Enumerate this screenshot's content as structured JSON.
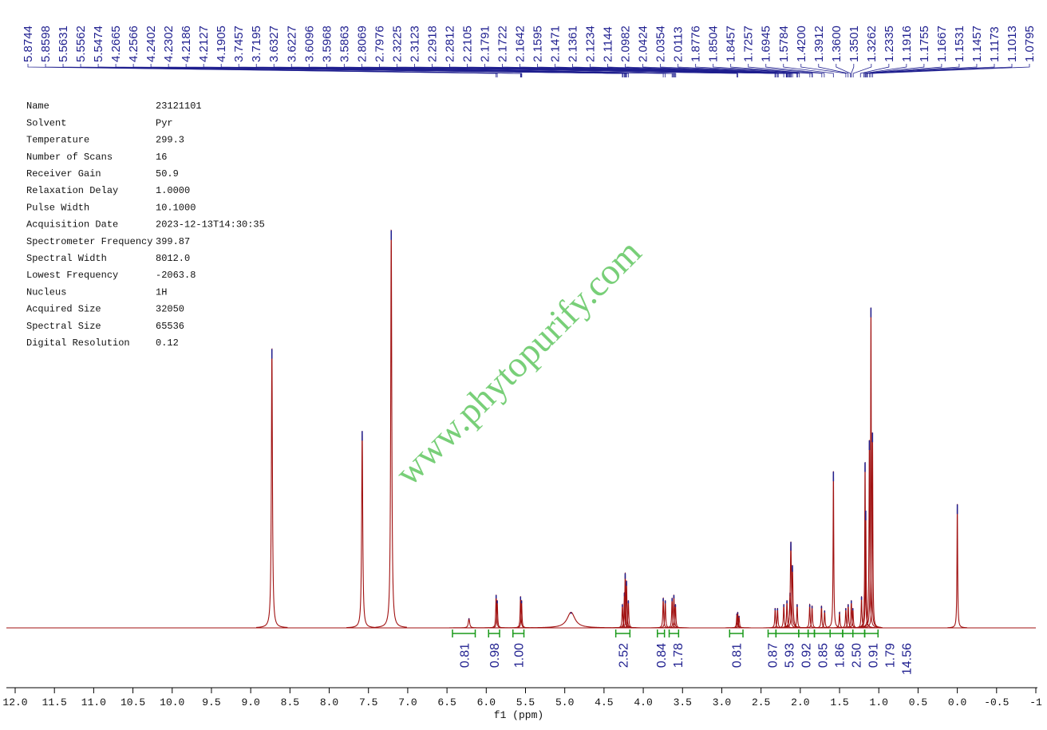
{
  "parameters": [
    [
      "Name",
      "23121101"
    ],
    [
      "Solvent",
      "Pyr"
    ],
    [
      "Temperature",
      "299.3"
    ],
    [
      "Number of Scans",
      "16"
    ],
    [
      "Receiver Gain",
      "50.9"
    ],
    [
      "Relaxation Delay",
      "1.0000"
    ],
    [
      "Pulse Width",
      "10.1000"
    ],
    [
      "Acquisition Date",
      "2023-12-13T14:30:35"
    ],
    [
      "Spectrometer Frequency",
      "399.87"
    ],
    [
      "Spectral Width",
      "8012.0"
    ],
    [
      "Lowest Frequency",
      "-2063.8"
    ],
    [
      "Nucleus",
      "1H"
    ],
    [
      "Acquired Size",
      "32050"
    ],
    [
      "Spectral Size",
      "65536"
    ],
    [
      "Digital Resolution",
      "0.12"
    ]
  ],
  "watermark": "www.phytopurify.com",
  "chart_data": {
    "type": "nmr",
    "xlabel": "f1 (ppm)",
    "xlim": [
      12.0,
      -1
    ],
    "xticks": [
      {
        "value": 12,
        "label": "12.0"
      },
      11.5,
      {
        "value": 11,
        "label": "11.0"
      },
      10.5,
      {
        "value": 10,
        "label": "10.0"
      },
      9.5,
      {
        "value": 9,
        "label": "9.0"
      },
      8.5,
      {
        "value": 8,
        "label": "8.0"
      },
      7.5,
      {
        "value": 7,
        "label": "7.0"
      },
      6.5,
      {
        "value": 6,
        "label": "6.0"
      },
      5.5,
      {
        "value": 5,
        "label": "5.0"
      },
      4.5,
      {
        "value": 4,
        "label": "4.0"
      },
      3.5,
      {
        "value": 3,
        "label": "3.0"
      },
      2.5,
      {
        "value": 2,
        "label": "2.0"
      },
      1.5,
      {
        "value": 1,
        "label": "1.0"
      },
      0.5,
      {
        "value": 0,
        "label": "0.0"
      },
      -0.5,
      -1
    ],
    "ylim": [
      0,
      520
    ],
    "color": "#a01010",
    "peak_color": "#1f1f8f",
    "peak_labels": [
      5.8744,
      5.8598,
      5.5631,
      5.5562,
      5.5474,
      4.2665,
      4.2566,
      4.2402,
      4.2302,
      4.2186,
      4.2127,
      4.1905,
      3.7457,
      3.7195,
      3.6327,
      3.6227,
      3.6096,
      3.5968,
      3.5863,
      2.8069,
      2.7976,
      2.3225,
      2.3123,
      2.2918,
      2.2812,
      2.2105,
      2.1791,
      2.1722,
      2.1642,
      2.1595,
      2.1471,
      2.1361,
      2.1234,
      2.1144,
      2.0982,
      2.0424,
      2.0354,
      2.0113,
      1.8776,
      1.8504,
      1.8457,
      1.7257,
      1.6945,
      1.5784,
      {
        "value": 1.42,
        "label": "1.4200"
      },
      1.3912,
      {
        "value": 1.36,
        "label": "1.3600"
      },
      1.3501,
      1.3262,
      1.2335,
      1.1916,
      1.1755,
      1.1667,
      1.1531,
      1.1457,
      1.1173,
      1.1013,
      1.0795
    ],
    "peaks": {
      "x": [
        8.73,
        7.58,
        7.21,
        6.22,
        5.874,
        5.86,
        5.563,
        5.55,
        4.92,
        4.266,
        4.24,
        4.23,
        4.213,
        4.19,
        3.746,
        3.72,
        3.633,
        3.61,
        3.59,
        2.807,
        2.797,
        2.78,
        2.32,
        2.29,
        2.21,
        2.17,
        2.13,
        2.12,
        2.1,
        2.04,
        1.88,
        1.85,
        1.73,
        1.69,
        1.578,
        1.5,
        1.42,
        1.39,
        1.35,
        1.33,
        1.22,
        1.175,
        1.166,
        1.12,
        1.1,
        1.08,
        0.0
      ],
      "values": [
        357,
        252,
        509,
        12,
        42,
        35,
        40,
        35,
        20,
        30,
        45,
        70,
        60,
        35,
        38,
        35,
        38,
        42,
        30,
        18,
        20,
        15,
        25,
        25,
        30,
        35,
        45,
        110,
        80,
        30,
        30,
        28,
        28,
        22,
        200,
        20,
        25,
        30,
        35,
        25,
        40,
        212,
        150,
        240,
        410,
        250,
        158
      ],
      "widths": [
        0.008,
        0.008,
        0.008,
        0.01,
        0.006,
        0.006,
        0.006,
        0.006,
        0.06,
        0.006,
        0.006,
        0.006,
        0.006,
        0.006,
        0.006,
        0.006,
        0.006,
        0.006,
        0.006,
        0.006,
        0.006,
        0.006,
        0.006,
        0.006,
        0.006,
        0.006,
        0.008,
        0.008,
        0.008,
        0.006,
        0.006,
        0.006,
        0.006,
        0.006,
        0.005,
        0.006,
        0.006,
        0.006,
        0.006,
        0.006,
        0.006,
        0.005,
        0.005,
        0.006,
        0.005,
        0.005,
        0.005
      ]
    },
    "integrals": {
      "color": "#1a9a1a",
      "values": [
        0.81,
        0.98,
        1.0,
        2.52,
        0.84,
        1.78,
        0.81,
        0.87,
        5.93,
        0.92,
        0.85,
        1.86,
        2.5,
        0.91,
        1.79,
        14.56
      ],
      "value_labels": [
        "0.81",
        "0.98",
        "1.00",
        "2.52",
        "0.84",
        "1.78",
        "0.81",
        "0.87",
        "5.93",
        "0.92",
        "0.85",
        "1.86",
        "2.50",
        "0.91",
        "1.79",
        "14.56"
      ],
      "ranges": [
        [
          6.43,
          6.14
        ],
        [
          5.97,
          5.83
        ],
        [
          5.66,
          5.52
        ],
        [
          4.35,
          4.17
        ],
        [
          3.82,
          3.73
        ],
        [
          3.67,
          3.55
        ],
        [
          2.9,
          2.73
        ],
        [
          2.41,
          2.31
        ],
        [
          2.31,
          2.02
        ],
        [
          2.02,
          1.9
        ],
        [
          1.9,
          1.82
        ],
        [
          1.82,
          1.62
        ],
        [
          1.62,
          1.46
        ],
        [
          1.46,
          1.33
        ],
        [
          1.33,
          1.18
        ],
        [
          1.18,
          1.01
        ]
      ]
    }
  }
}
